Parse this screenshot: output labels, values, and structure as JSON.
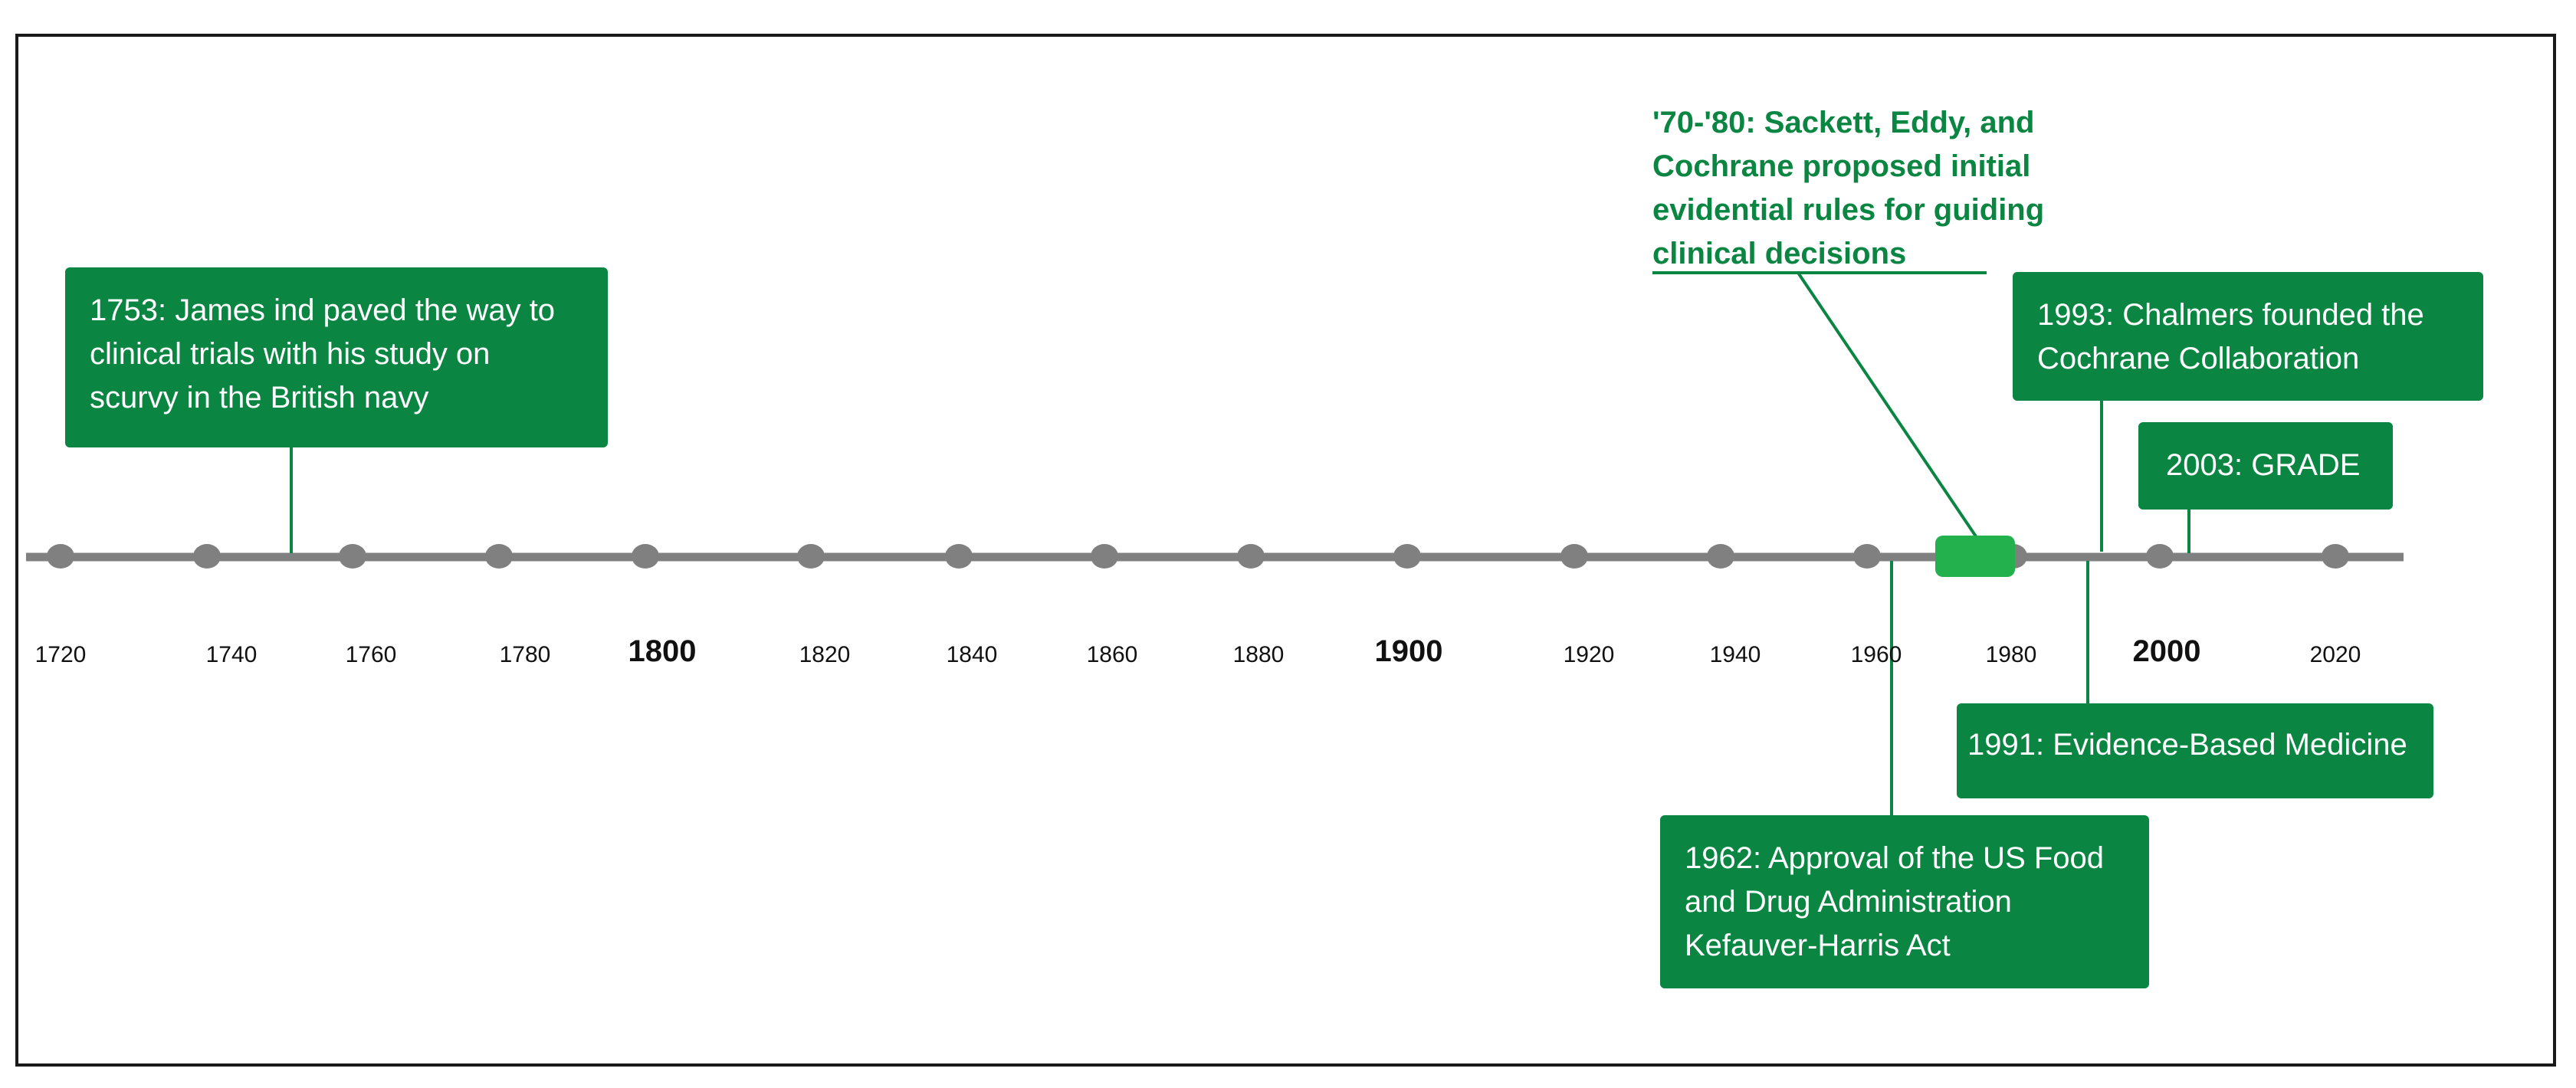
{
  "timeline": {
    "accent_color": "#0b8542",
    "highlight_color": "#23b14d",
    "axis_color": "#808080",
    "ticks": [
      {
        "label": "1720",
        "major": false
      },
      {
        "label": "1740",
        "major": false
      },
      {
        "label": "1760",
        "major": false
      },
      {
        "label": "1780",
        "major": false
      },
      {
        "label": "1800",
        "major": true
      },
      {
        "label": "1820",
        "major": false
      },
      {
        "label": "1840",
        "major": false
      },
      {
        "label": "1860",
        "major": false
      },
      {
        "label": "1880",
        "major": false
      },
      {
        "label": "1900",
        "major": true
      },
      {
        "label": "1920",
        "major": false
      },
      {
        "label": "1940",
        "major": false
      },
      {
        "label": "1960",
        "major": false
      },
      {
        "label": "1980",
        "major": false
      },
      {
        "label": "2000",
        "major": true
      },
      {
        "label": "2020",
        "major": false
      }
    ],
    "events": {
      "lind": {
        "lines": [
          "1753: James ind paved the way to",
          "clinical trials with his study on",
          "scurvy in the British navy"
        ]
      },
      "sackett": {
        "lines": [
          "'70-'80: Sackett, Eddy, and",
          "Cochrane proposed initial",
          "evidential rules for guiding",
          "clinical decisions"
        ]
      },
      "chalmers": {
        "lines": [
          "1993: Chalmers founded the",
          "Cochrane Collaboration"
        ]
      },
      "grade": {
        "lines": [
          "2003: GRADE"
        ]
      },
      "ebm": {
        "lines": [
          "1991: Evidence-Based Medicine"
        ]
      },
      "fda": {
        "lines": [
          "1962: Approval of the US Food",
          "and Drug Administration",
          "Kefauver-Harris Act"
        ]
      }
    }
  }
}
